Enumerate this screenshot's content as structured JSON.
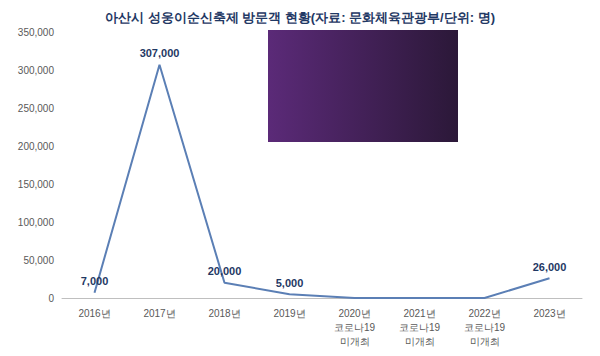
{
  "chart_data": {
    "type": "line",
    "title": "아산시 성웅이순신축제 방문객 현황(자료: 문화체육관광부/단위: 명)",
    "categories": [
      "2016년",
      "2017년",
      "2018년",
      "2019년",
      "2020년\n코로나19\n미개최",
      "2021년\n코로나19\n미개최",
      "2022년\n코로나19\n미개최",
      "2023년"
    ],
    "values": [
      7000,
      307000,
      20000,
      5000,
      0,
      0,
      0,
      26000
    ],
    "value_labels": [
      "7,000",
      "307,000",
      "20,000",
      "5,000",
      null,
      null,
      null,
      "26,000"
    ],
    "data_labels": true,
    "color": "#5b7fb5",
    "ylim": [
      0,
      350000
    ],
    "yticks": [
      0,
      {
        "value": 50000,
        "label": "50,000"
      },
      {
        "value": 100000,
        "label": "100,000"
      },
      {
        "value": 150000,
        "label": "150,000"
      },
      {
        "value": 200000,
        "label": "200,000"
      },
      {
        "value": 250000,
        "label": "250,000"
      },
      {
        "value": 300000,
        "label": "300,000"
      },
      {
        "value": 350000,
        "label": "350,000"
      }
    ],
    "grid": false
  }
}
